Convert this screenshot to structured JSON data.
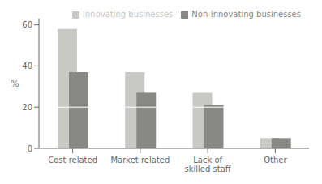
{
  "chart_data": {
    "type": "bar",
    "categories": [
      "Cost related",
      "Market related",
      "Lack of skilled staff",
      "Other"
    ],
    "series": [
      {
        "name": "Innovating businesses",
        "color": "#c8c8c4",
        "values": [
          58,
          37,
          27,
          5
        ],
        "overlap": [
          20,
          20,
          20,
          5
        ]
      },
      {
        "name": "Non-innovating businesses",
        "color": "#888884",
        "values": [
          37,
          27,
          21,
          5
        ],
        "overlap": [
          20,
          20,
          20,
          5
        ]
      }
    ],
    "ylabel": "%",
    "ylim": [
      0,
      63
    ],
    "yticks": [
      0,
      20,
      40,
      60
    ],
    "grid": false,
    "legend": "upper right"
  }
}
